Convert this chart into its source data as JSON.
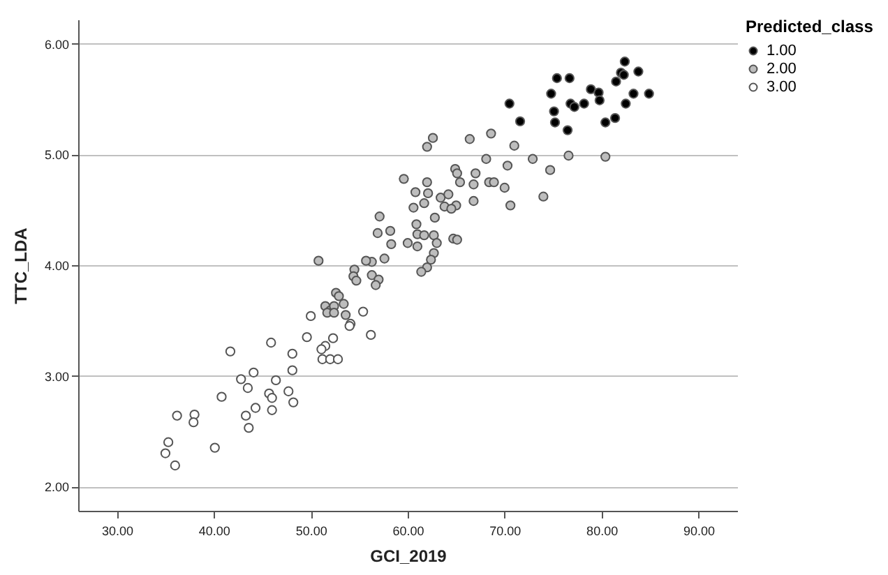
{
  "chart_data": {
    "type": "scatter",
    "xlabel": "GCI_2019",
    "ylabel": "TTC_LDA",
    "legend_title": "Predicted_class",
    "legend": "right",
    "grid": "y",
    "marker": "circle",
    "xlim": [
      26,
      94
    ],
    "ylim": [
      1.78,
      6.22
    ],
    "xticks": [
      {
        "value": 30,
        "label": "30.00"
      },
      {
        "value": 40,
        "label": "40.00"
      },
      {
        "value": 50,
        "label": "50.00"
      },
      {
        "value": 60,
        "label": "60.00"
      },
      {
        "value": 70,
        "label": "70.00"
      },
      {
        "value": 80,
        "label": "80.00"
      },
      {
        "value": 90,
        "label": "90.00"
      }
    ],
    "yticks": [
      {
        "value": 2,
        "label": "2.00"
      },
      {
        "value": 3,
        "label": "3.00"
      },
      {
        "value": 4,
        "label": "4.00"
      },
      {
        "value": 5,
        "label": "5.00"
      },
      {
        "value": 6,
        "label": "6.00"
      }
    ],
    "series": [
      {
        "name": "1.00",
        "color": "#000000",
        "x": [
          70.5,
          71.6,
          75.4,
          76.7,
          74.8,
          75.1,
          75.2,
          76.5,
          76.8,
          77.2,
          78.2,
          78.9,
          79.7,
          79.8,
          80.4,
          81.4,
          81.5,
          82.0,
          82.4,
          82.3,
          83.8,
          83.3,
          82.5,
          84.9
        ],
        "values": [
          5.46,
          5.3,
          5.69,
          5.69,
          5.55,
          5.39,
          5.29,
          5.22,
          5.46,
          5.43,
          5.46,
          5.59,
          5.56,
          5.49,
          5.29,
          5.33,
          5.66,
          5.74,
          5.84,
          5.72,
          5.75,
          5.55,
          5.46,
          5.55
        ]
      },
      {
        "name": "2.00",
        "color": "#bdbdbd",
        "x": [
          62.0,
          62.6,
          66.4,
          68.6,
          71.0,
          72.9,
          68.1,
          70.3,
          76.6,
          74.7,
          74.0,
          70.6,
          70.0,
          68.4,
          68.9,
          67.0,
          66.8,
          66.8,
          64.9,
          65.1,
          65.4,
          59.6,
          62.0,
          60.8,
          62.1,
          63.4,
          64.2,
          63.8,
          65.0,
          64.5,
          61.7,
          60.6,
          62.8,
          57.1,
          60.9,
          56.9,
          58.2,
          61.0,
          61.7,
          62.7,
          63.0,
          64.7,
          65.1,
          60.0,
          58.3,
          61.0,
          62.7,
          62.4,
          62.0,
          61.4,
          57.6,
          56.3,
          55.7,
          50.8,
          54.5,
          54.4,
          54.7,
          56.3,
          57.0,
          56.7,
          52.6,
          52.9,
          53.4,
          51.5,
          52.0,
          52.4,
          51.7,
          52.4,
          53.6,
          80.4
        ],
        "values": [
          5.07,
          5.15,
          5.14,
          5.19,
          5.08,
          4.96,
          4.96,
          4.9,
          4.99,
          4.86,
          4.62,
          4.54,
          4.7,
          4.75,
          4.75,
          4.83,
          4.73,
          4.58,
          4.87,
          4.83,
          4.75,
          4.78,
          4.75,
          4.66,
          4.65,
          4.61,
          4.64,
          4.53,
          4.54,
          4.51,
          4.56,
          4.52,
          4.43,
          4.44,
          4.37,
          4.29,
          4.31,
          4.28,
          4.27,
          4.27,
          4.2,
          4.24,
          4.23,
          4.2,
          4.19,
          4.17,
          4.11,
          4.05,
          3.98,
          3.94,
          4.06,
          4.03,
          4.04,
          4.04,
          3.96,
          3.9,
          3.86,
          3.91,
          3.87,
          3.82,
          3.75,
          3.72,
          3.65,
          3.63,
          3.59,
          3.63,
          3.57,
          3.57,
          3.55,
          4.98
        ]
      },
      {
        "name": "3.00",
        "color": "#ffffff",
        "x": [
          50.0,
          55.4,
          54.1,
          54.0,
          56.2,
          45.9,
          41.7,
          49.6,
          52.3,
          51.5,
          51.1,
          51.2,
          52.0,
          52.8,
          48.1,
          48.1,
          44.1,
          42.8,
          43.5,
          46.4,
          45.7,
          46.0,
          47.7,
          48.2,
          40.8,
          44.3,
          46.0,
          43.3,
          43.6,
          36.2,
          38.0,
          37.9,
          40.1,
          35.3,
          35.0,
          36.0
        ],
        "values": [
          3.54,
          3.58,
          3.47,
          3.45,
          3.37,
          3.3,
          3.22,
          3.35,
          3.34,
          3.27,
          3.24,
          3.15,
          3.15,
          3.15,
          3.2,
          3.05,
          3.03,
          2.97,
          2.89,
          2.96,
          2.84,
          2.8,
          2.86,
          2.76,
          2.81,
          2.71,
          2.69,
          2.64,
          2.53,
          2.64,
          2.65,
          2.58,
          2.35,
          2.4,
          2.3,
          2.19
        ]
      }
    ]
  }
}
